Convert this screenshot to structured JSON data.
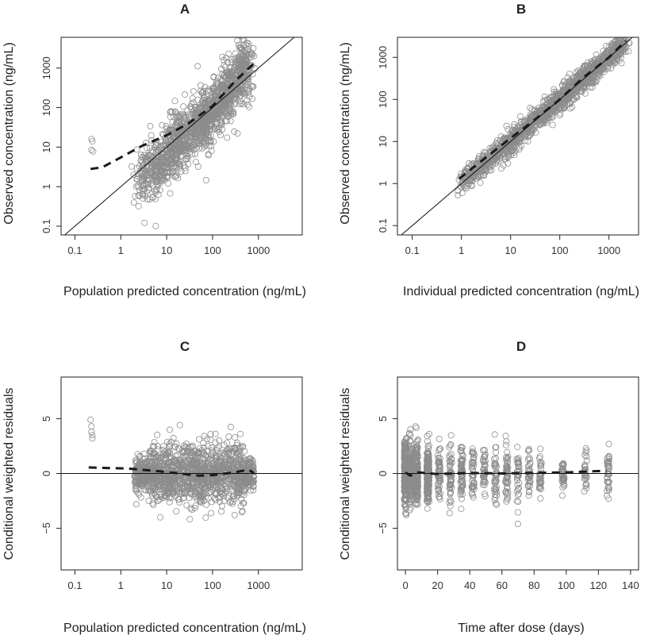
{
  "chart_data": [
    {
      "id": "A",
      "type": "scatter",
      "title": "A",
      "xlabel": "Population predicted concentration (ng/mL)",
      "ylabel": "Observed concentration (ng/mL)",
      "x_scale": "log",
      "y_scale": "log",
      "xlim": [
        0.05,
        9000
      ],
      "ylim": [
        0.06,
        6000
      ],
      "x_ticks": [
        {
          "v": 0.1,
          "label": "0.1"
        },
        {
          "v": 1,
          "label": "1"
        },
        {
          "v": 10,
          "label": "10"
        },
        {
          "v": 100,
          "label": "100"
        },
        {
          "v": 1000,
          "label": "1000"
        }
      ],
      "y_ticks": [
        {
          "v": 0.1,
          "label": "0.1"
        },
        {
          "v": 1,
          "label": "1"
        },
        {
          "v": 10,
          "label": "10"
        },
        {
          "v": 100,
          "label": "100"
        },
        {
          "v": 1000,
          "label": "1000"
        }
      ],
      "reference_line": "identity",
      "outliers": [
        {
          "x": 0.23,
          "y": 16
        },
        {
          "x": 0.24,
          "y": 14
        },
        {
          "x": 0.23,
          "y": 8.5
        },
        {
          "x": 0.25,
          "y": 7.8
        }
      ],
      "cloud": {
        "x_log_range": [
          0.35,
          2.8
        ],
        "y_at_x": [
          [
            0.5,
            1.6
          ],
          [
            1,
            7
          ],
          [
            2,
            80
          ],
          [
            2.7,
            900
          ]
        ],
        "y_log_sd": 0.38
      },
      "smooth": [
        [
          0.22,
          2.8
        ],
        [
          0.4,
          3.1
        ],
        [
          1,
          5.5
        ],
        [
          3,
          11
        ],
        [
          10,
          20
        ],
        [
          30,
          40
        ],
        [
          100,
          110
        ],
        [
          300,
          450
        ],
        [
          900,
          1500
        ]
      ]
    },
    {
      "id": "B",
      "type": "scatter",
      "title": "B",
      "xlabel": "Individual predicted concentration (ng/mL)",
      "ylabel": "Observed concentration (ng/mL)",
      "x_scale": "log",
      "y_scale": "log",
      "xlim": [
        0.05,
        4000
      ],
      "ylim": [
        0.06,
        3000
      ],
      "x_ticks": [
        {
          "v": 0.1,
          "label": "0.1"
        },
        {
          "v": 1,
          "label": "1"
        },
        {
          "v": 10,
          "label": "10"
        },
        {
          "v": 100,
          "label": "100"
        },
        {
          "v": 1000,
          "label": "1000"
        }
      ],
      "y_ticks": [
        {
          "v": 0.1,
          "label": "0.1"
        },
        {
          "v": 1,
          "label": "1"
        },
        {
          "v": 10,
          "label": "10"
        },
        {
          "v": 100,
          "label": "100"
        },
        {
          "v": 1000,
          "label": "1000"
        }
      ],
      "reference_line": "identity",
      "cloud": {
        "x_log_range": [
          -0.05,
          3.3
        ],
        "y_at_x": [
          [
            0,
            1
          ],
          [
            3.3,
            2000
          ]
        ],
        "y_log_sd": 0.14
      },
      "smooth": [
        [
          0.9,
          1.3
        ],
        [
          3,
          4
        ],
        [
          10,
          12
        ],
        [
          30,
          32
        ],
        [
          100,
          100
        ],
        [
          300,
          330
        ],
        [
          1000,
          1000
        ],
        [
          2200,
          2500
        ]
      ]
    },
    {
      "id": "C",
      "type": "scatter",
      "title": "C",
      "xlabel": "Population predicted concentration (ng/mL)",
      "ylabel": "Conditional weighted residuals",
      "x_scale": "log",
      "y_scale": "linear",
      "xlim": [
        0.05,
        9000
      ],
      "ylim": [
        -8.8,
        8.8
      ],
      "x_ticks": [
        {
          "v": 0.1,
          "label": "0.1"
        },
        {
          "v": 1,
          "label": "1"
        },
        {
          "v": 10,
          "label": "10"
        },
        {
          "v": 100,
          "label": "100"
        },
        {
          "v": 1000,
          "label": "1000"
        }
      ],
      "y_ticks": [
        {
          "v": -5,
          "label": "−5"
        },
        {
          "v": 0,
          "label": "0"
        },
        {
          "v": 5,
          "label": "5"
        }
      ],
      "reference_line": "zero",
      "outliers": [
        {
          "x": 0.22,
          "y": 4.9
        },
        {
          "x": 0.23,
          "y": 4.3
        },
        {
          "x": 0.23,
          "y": 3.8
        },
        {
          "x": 0.24,
          "y": 3.5
        },
        {
          "x": 0.24,
          "y": 3.2
        }
      ],
      "cloud": {
        "x_log_range": [
          0.3,
          2.9
        ],
        "y_center": 0,
        "y_sd": 1.3
      },
      "smooth": [
        [
          0.2,
          0.55
        ],
        [
          0.5,
          0.5
        ],
        [
          1.5,
          0.45
        ],
        [
          5,
          0.25
        ],
        [
          15,
          0.05
        ],
        [
          50,
          -0.2
        ],
        [
          100,
          -0.15
        ],
        [
          300,
          0.1
        ],
        [
          600,
          0.35
        ],
        [
          800,
          0.05
        ]
      ]
    },
    {
      "id": "D",
      "type": "scatter",
      "title": "D",
      "xlabel": "Time after dose (days)",
      "ylabel": "Conditional weighted residuals",
      "x_scale": "linear",
      "y_scale": "linear",
      "xlim": [
        -5,
        145
      ],
      "ylim": [
        -8.8,
        8.8
      ],
      "x_ticks": [
        {
          "v": 0,
          "label": "0"
        },
        {
          "v": 20,
          "label": "20"
        },
        {
          "v": 40,
          "label": "40"
        },
        {
          "v": 60,
          "label": "60"
        },
        {
          "v": 80,
          "label": "80"
        },
        {
          "v": 100,
          "label": "100"
        },
        {
          "v": 120,
          "label": "120"
        },
        {
          "v": 140,
          "label": "140"
        }
      ],
      "y_ticks": [
        {
          "v": -5,
          "label": "−5"
        },
        {
          "v": 0,
          "label": "0"
        },
        {
          "v": 5,
          "label": "5"
        }
      ],
      "reference_line": "zero",
      "cloud": {
        "x_clusters": [
          0,
          3,
          7,
          14,
          21,
          28,
          35,
          42,
          49,
          56,
          63,
          70,
          77,
          84,
          98,
          112,
          126
        ],
        "y_center": 0,
        "y_sd": 1.3
      },
      "smooth": [
        [
          0,
          0.1
        ],
        [
          3,
          -0.2
        ],
        [
          7,
          0.1
        ],
        [
          20,
          -0.05
        ],
        [
          40,
          0.05
        ],
        [
          60,
          0.0
        ],
        [
          80,
          0.05
        ],
        [
          100,
          0.1
        ],
        [
          125,
          0.25
        ]
      ]
    }
  ]
}
